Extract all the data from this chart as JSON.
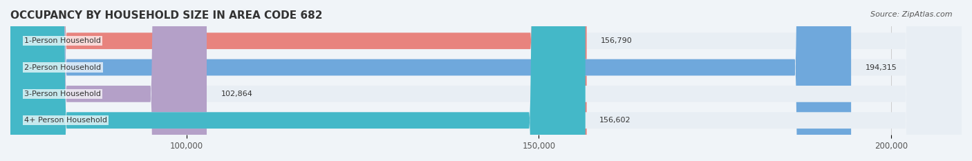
{
  "title": "OCCUPANCY BY HOUSEHOLD SIZE IN AREA CODE 682",
  "source": "Source: ZipAtlas.com",
  "categories": [
    "1-Person Household",
    "2-Person Household",
    "3-Person Household",
    "4+ Person Household"
  ],
  "values": [
    156790,
    194315,
    102864,
    156602
  ],
  "bar_colors": [
    "#e8837e",
    "#6fa8dc",
    "#b4a0c8",
    "#44b8c8"
  ],
  "label_colors": [
    "#555555",
    "#ffffff",
    "#555555",
    "#555555"
  ],
  "background_color": "#f0f4f8",
  "bar_background": "#e8eef4",
  "xlim": [
    75000,
    210000
  ],
  "xticks": [
    100000,
    150000,
    200000
  ],
  "xtick_labels": [
    "100,000",
    "150,000",
    "200,000"
  ],
  "title_fontsize": 11,
  "source_fontsize": 8,
  "tick_fontsize": 8.5,
  "bar_label_fontsize": 8,
  "category_fontsize": 8
}
